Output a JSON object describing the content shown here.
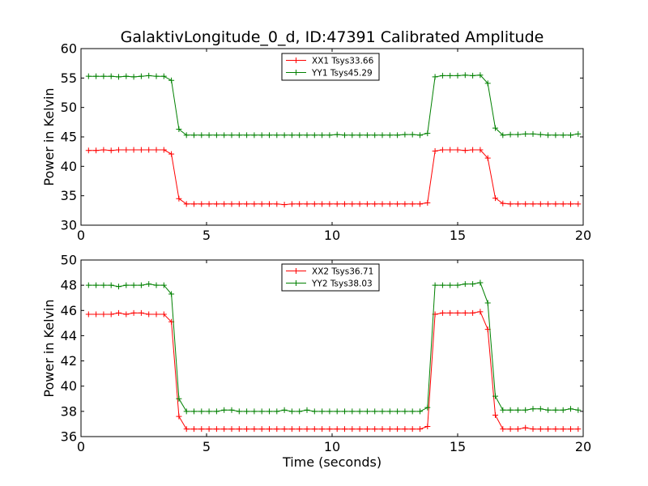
{
  "chart_data": [
    {
      "type": "line",
      "title": "GalaktivLongitude_0_d, ID:47391 Calibrated Amplitude",
      "xlabel": "",
      "ylabel": "Power in Kelvin",
      "xlim": [
        0,
        20
      ],
      "ylim": [
        30,
        60
      ],
      "xticks": [
        "0",
        "5",
        "10",
        "15",
        "20"
      ],
      "yticks": [
        "30",
        "35",
        "40",
        "45",
        "50",
        "55",
        "60"
      ],
      "grid": false,
      "legend_position": "top-center",
      "x": [
        0.3,
        0.6,
        0.9,
        1.2,
        1.5,
        1.8,
        2.1,
        2.4,
        2.7,
        3.0,
        3.3,
        3.6,
        3.9,
        4.2,
        4.5,
        4.8,
        5.1,
        5.4,
        5.7,
        6.0,
        6.3,
        6.6,
        6.9,
        7.2,
        7.5,
        7.8,
        8.1,
        8.4,
        8.7,
        9.0,
        9.3,
        9.6,
        9.9,
        10.2,
        10.5,
        10.8,
        11.1,
        11.4,
        11.7,
        12.0,
        12.3,
        12.6,
        12.9,
        13.2,
        13.5,
        13.8,
        14.1,
        14.4,
        14.7,
        15.0,
        15.3,
        15.6,
        15.9,
        16.2,
        16.5,
        16.8,
        17.1,
        17.4,
        17.7,
        18.0,
        18.3,
        18.6,
        18.9,
        19.2,
        19.5,
        19.8
      ],
      "series": [
        {
          "name": "XX1 Tsys33.66",
          "color": "#ff0000",
          "values": [
            42.7,
            42.7,
            42.8,
            42.7,
            42.8,
            42.8,
            42.8,
            42.8,
            42.8,
            42.8,
            42.8,
            42.1,
            34.5,
            33.6,
            33.6,
            33.6,
            33.6,
            33.6,
            33.6,
            33.6,
            33.6,
            33.6,
            33.6,
            33.6,
            33.6,
            33.6,
            33.5,
            33.6,
            33.6,
            33.6,
            33.6,
            33.6,
            33.6,
            33.6,
            33.6,
            33.6,
            33.6,
            33.6,
            33.6,
            33.6,
            33.6,
            33.6,
            33.6,
            33.6,
            33.6,
            33.8,
            42.6,
            42.8,
            42.8,
            42.8,
            42.7,
            42.8,
            42.8,
            41.4,
            34.6,
            33.7,
            33.6,
            33.6,
            33.6,
            33.6,
            33.6,
            33.6,
            33.6,
            33.6,
            33.6,
            33.6
          ]
        },
        {
          "name": "YY1 Tsys45.29",
          "color": "#008000",
          "values": [
            55.3,
            55.3,
            55.3,
            55.3,
            55.2,
            55.3,
            55.2,
            55.3,
            55.4,
            55.3,
            55.3,
            54.6,
            46.3,
            45.3,
            45.3,
            45.3,
            45.3,
            45.3,
            45.3,
            45.3,
            45.3,
            45.3,
            45.3,
            45.3,
            45.3,
            45.3,
            45.3,
            45.3,
            45.3,
            45.3,
            45.3,
            45.3,
            45.3,
            45.4,
            45.3,
            45.3,
            45.3,
            45.3,
            45.3,
            45.3,
            45.3,
            45.3,
            45.4,
            45.4,
            45.3,
            45.6,
            55.2,
            55.4,
            55.4,
            55.4,
            55.5,
            55.4,
            55.5,
            54.1,
            46.5,
            45.3,
            45.4,
            45.4,
            45.5,
            45.5,
            45.4,
            45.3,
            45.3,
            45.3,
            45.3,
            45.5
          ]
        }
      ]
    },
    {
      "type": "line",
      "title": "",
      "xlabel": "Time (seconds)",
      "ylabel": "Power in Kelvin",
      "xlim": [
        0,
        20
      ],
      "ylim": [
        36,
        50
      ],
      "xticks": [
        "0",
        "5",
        "10",
        "15",
        "20"
      ],
      "yticks": [
        "36",
        "38",
        "40",
        "42",
        "44",
        "46",
        "48",
        "50"
      ],
      "grid": false,
      "legend_position": "top-center",
      "x": [
        0.3,
        0.6,
        0.9,
        1.2,
        1.5,
        1.8,
        2.1,
        2.4,
        2.7,
        3.0,
        3.3,
        3.6,
        3.9,
        4.2,
        4.5,
        4.8,
        5.1,
        5.4,
        5.7,
        6.0,
        6.3,
        6.6,
        6.9,
        7.2,
        7.5,
        7.8,
        8.1,
        8.4,
        8.7,
        9.0,
        9.3,
        9.6,
        9.9,
        10.2,
        10.5,
        10.8,
        11.1,
        11.4,
        11.7,
        12.0,
        12.3,
        12.6,
        12.9,
        13.2,
        13.5,
        13.8,
        14.1,
        14.4,
        14.7,
        15.0,
        15.3,
        15.6,
        15.9,
        16.2,
        16.5,
        16.8,
        17.1,
        17.4,
        17.7,
        18.0,
        18.3,
        18.6,
        18.9,
        19.2,
        19.5,
        19.8
      ],
      "series": [
        {
          "name": "XX2 Tsys36.71",
          "color": "#ff0000",
          "values": [
            45.7,
            45.7,
            45.7,
            45.7,
            45.8,
            45.7,
            45.8,
            45.8,
            45.7,
            45.7,
            45.7,
            45.1,
            37.6,
            36.6,
            36.6,
            36.6,
            36.6,
            36.6,
            36.6,
            36.6,
            36.6,
            36.6,
            36.6,
            36.6,
            36.6,
            36.6,
            36.6,
            36.6,
            36.6,
            36.6,
            36.6,
            36.6,
            36.6,
            36.6,
            36.6,
            36.6,
            36.6,
            36.6,
            36.6,
            36.6,
            36.6,
            36.6,
            36.6,
            36.6,
            36.6,
            36.8,
            45.7,
            45.8,
            45.8,
            45.8,
            45.8,
            45.8,
            45.9,
            44.5,
            37.7,
            36.6,
            36.6,
            36.6,
            36.7,
            36.6,
            36.6,
            36.6,
            36.6,
            36.6,
            36.6,
            36.6
          ]
        },
        {
          "name": "YY2 Tsys38.03",
          "color": "#008000",
          "values": [
            48.0,
            48.0,
            48.0,
            48.0,
            47.9,
            48.0,
            48.0,
            48.0,
            48.1,
            48.0,
            48.0,
            47.3,
            39.0,
            38.0,
            38.0,
            38.0,
            38.0,
            38.0,
            38.1,
            38.1,
            38.0,
            38.0,
            38.0,
            38.0,
            38.0,
            38.0,
            38.1,
            38.0,
            38.0,
            38.1,
            38.0,
            38.0,
            38.0,
            38.0,
            38.0,
            38.0,
            38.0,
            38.0,
            38.0,
            38.0,
            38.0,
            38.0,
            38.0,
            38.0,
            38.0,
            38.3,
            48.0,
            48.0,
            48.0,
            48.0,
            48.1,
            48.1,
            48.2,
            46.6,
            39.2,
            38.1,
            38.1,
            38.1,
            38.1,
            38.2,
            38.2,
            38.1,
            38.1,
            38.1,
            38.2,
            38.1
          ]
        }
      ]
    }
  ]
}
